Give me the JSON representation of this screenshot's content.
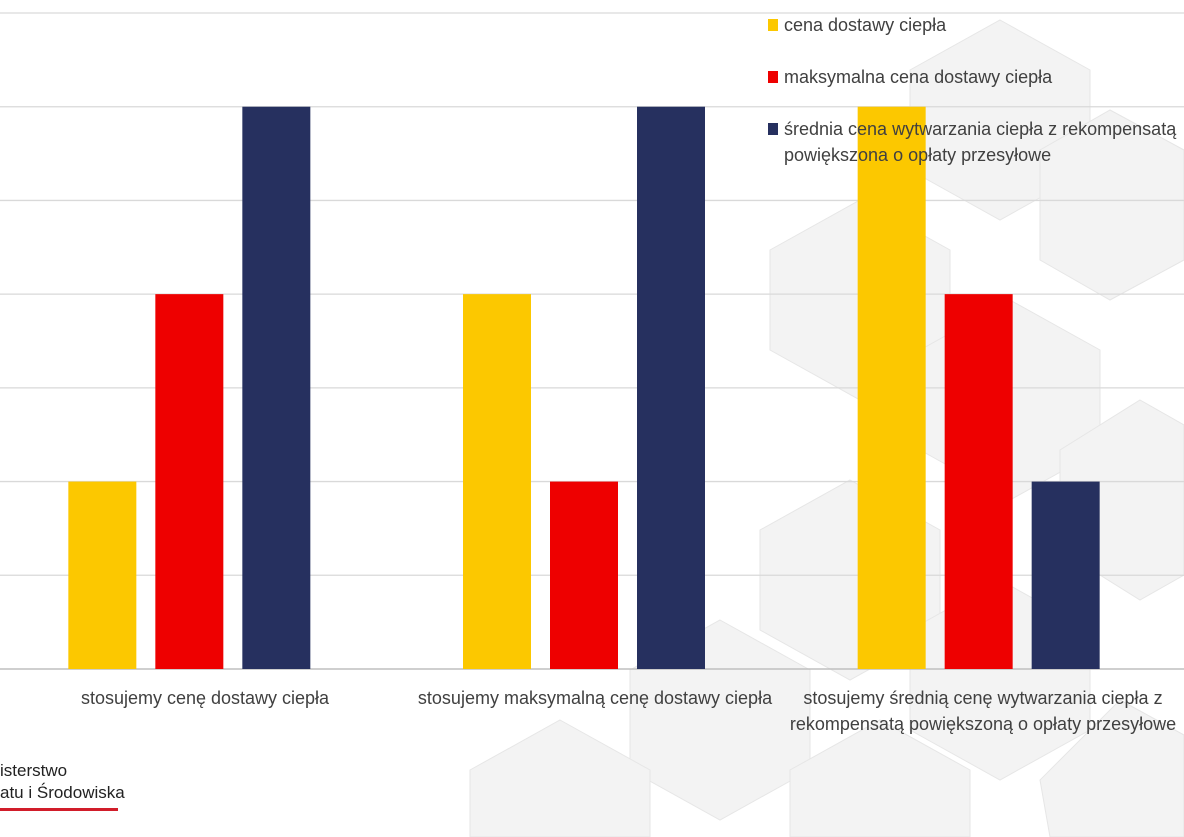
{
  "colors": {
    "cena_dostawy": "#fcc800",
    "maksymalna": "#ee0000",
    "srednia": "#26305f",
    "grid": "#d9d9d9"
  },
  "chart_data": {
    "type": "bar",
    "categories": [
      "stosujemy cenę dostawy ciepła",
      "stosujemy maksymalną cenę dostawy ciepła",
      "stosujemy średnią cenę wytwarzania ciepła z rekompensatą powiększoną o opłaty przesyłowe"
    ],
    "category_lines": [
      [
        "stosujemy cenę dostawy ciepła"
      ],
      [
        "stosujemy maksymalną cenę dostawy ciepła"
      ],
      [
        "stosujemy średnią cenę wytwarzania ciepła z",
        "rekompensatą powiększoną o opłaty przesyłowe"
      ]
    ],
    "series": [
      {
        "name": "cena dostawy ciepła",
        "color_key": "cena_dostawy",
        "values": [
          2,
          4,
          6
        ]
      },
      {
        "name": "maksymalna cena dostawy ciepła",
        "color_key": "maksymalna",
        "values": [
          4,
          2,
          4
        ]
      },
      {
        "name": "średnia cena wytwarzania ciepła z rekompensatą powiększona o opłaty przesyłowe",
        "color_key": "srednia",
        "values": [
          6,
          6,
          2
        ]
      }
    ],
    "ylim": [
      0,
      7
    ],
    "grid": true,
    "legend_position": "top-right"
  },
  "legend": {
    "items": [
      {
        "lines": [
          "cena dostawy ciepła"
        ],
        "color_key": "cena_dostawy"
      },
      {
        "lines": [
          "maksymalna cena dostawy ciepła"
        ],
        "color_key": "maksymalna"
      },
      {
        "lines": [
          "średnia cena wytwarzania ciepła z rekompensatą",
          "powiększona o opłaty przesyłowe"
        ],
        "color_key": "srednia"
      }
    ]
  },
  "footer": {
    "logo_line1": "isterstwo",
    "logo_line2": "atu i Środowiska"
  }
}
